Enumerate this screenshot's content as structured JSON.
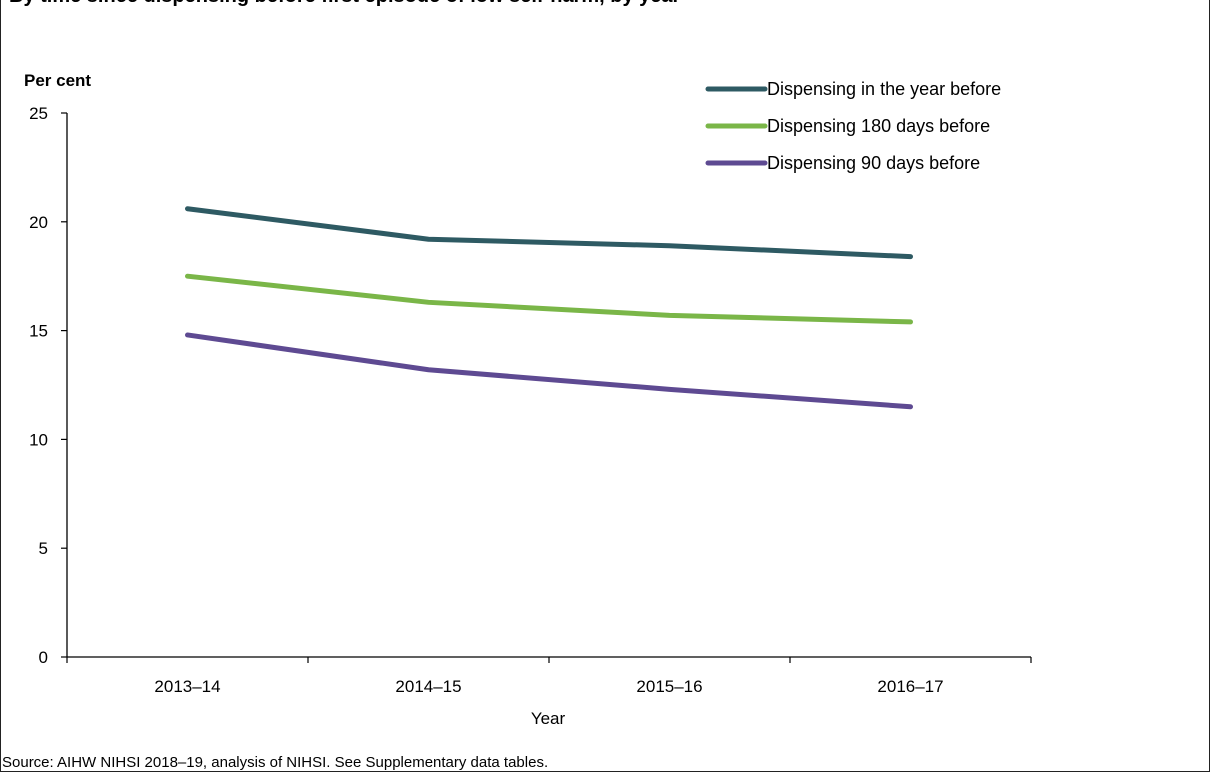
{
  "chart_data": {
    "type": "line",
    "title": "By time since dispensing before first episode of low self-harm, by year",
    "ylabel": "Per cent",
    "xlabel": "Year",
    "categories": [
      "2013–14",
      "2014–15",
      "2015–16",
      "2016–17"
    ],
    "ylim": [
      0,
      25
    ],
    "yticks": [
      "0",
      "5",
      "10",
      "15",
      "20",
      "25"
    ],
    "grid": false,
    "legend_position": "top-right",
    "series": [
      {
        "name": "Dispensing in the year before",
        "color": "#2e5a63",
        "values": [
          20.6,
          19.2,
          18.9,
          18.4
        ]
      },
      {
        "name": "Dispensing 180 days before",
        "color": "#7ab648",
        "values": [
          17.5,
          16.3,
          15.7,
          15.4
        ]
      },
      {
        "name": "Dispensing 90 days before",
        "color": "#5e4a92",
        "values": [
          14.8,
          13.2,
          12.3,
          11.5
        ]
      }
    ]
  },
  "source": "Source: AIHW NIHSI 2018–19, analysis of NIHSI. See Supplementary data tables."
}
